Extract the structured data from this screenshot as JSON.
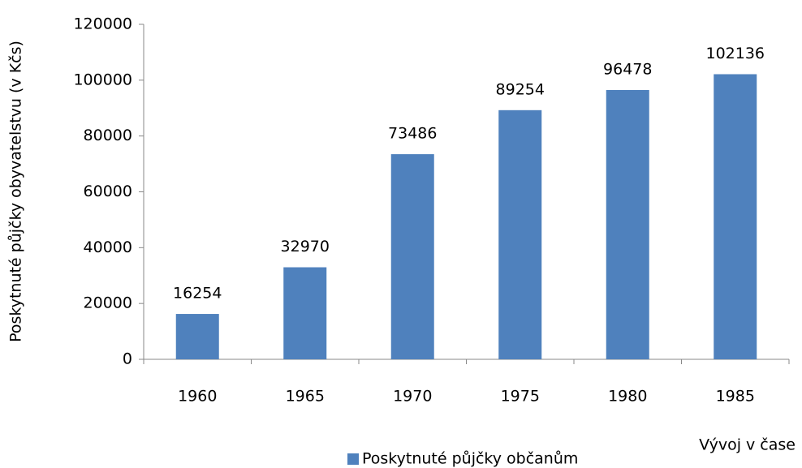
{
  "chart_data": {
    "type": "bar",
    "ylabel": "Poskytnuté půjčky obyvatelstvu (v Kčs)",
    "xlabel": "Vývoj v čase",
    "categories": [
      "1960",
      "1965",
      "1970",
      "1975",
      "1980",
      "1985"
    ],
    "series": [
      {
        "name": "Poskytnuté půjčky občanům",
        "color": "#4f81bd",
        "values": [
          16254,
          32970,
          73486,
          89254,
          96478,
          102136
        ]
      }
    ],
    "ylim": [
      0,
      120000
    ],
    "yticks": [
      0,
      20000,
      40000,
      60000,
      80000,
      100000,
      120000
    ],
    "grid": false,
    "legend": "bottom"
  }
}
